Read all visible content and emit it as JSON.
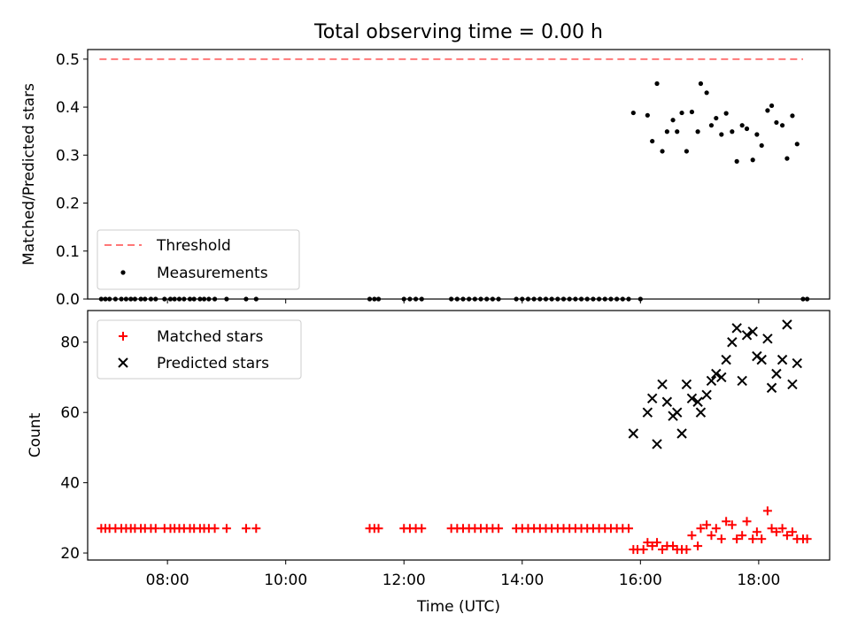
{
  "figure_title": "Total observing time = 0.00 h",
  "chart_data": [
    {
      "type": "scatter",
      "ylabel": "Matched/Predicted stars",
      "ylim": [
        0,
        0.52
      ],
      "yticks": [
        0.0,
        0.1,
        0.2,
        0.3,
        0.4,
        0.5
      ],
      "ytick_labels": [
        "0.0",
        "0.1",
        "0.2",
        "0.3",
        "0.4",
        "0.5"
      ],
      "xlim_hours": [
        6.65,
        19.2
      ],
      "legend": {
        "placement": "lower-left",
        "entries": [
          "Threshold",
          "Measurements"
        ]
      },
      "threshold": {
        "name": "Threshold",
        "value": 0.5,
        "x_range_hours": [
          6.85,
          18.75
        ],
        "color": "#ff7777",
        "style": "dashed"
      },
      "series": [
        {
          "name": "Measurements",
          "color": "#000000",
          "marker": "dot",
          "points": [
            [
              6.88,
              0
            ],
            [
              6.95,
              0
            ],
            [
              7.02,
              0
            ],
            [
              7.12,
              0
            ],
            [
              7.22,
              0
            ],
            [
              7.3,
              0
            ],
            [
              7.38,
              0
            ],
            [
              7.45,
              0
            ],
            [
              7.55,
              0
            ],
            [
              7.62,
              0
            ],
            [
              7.72,
              0
            ],
            [
              7.8,
              0
            ],
            [
              7.95,
              0
            ],
            [
              8.05,
              0
            ],
            [
              8.12,
              0
            ],
            [
              8.2,
              0
            ],
            [
              8.28,
              0
            ],
            [
              8.38,
              0
            ],
            [
              8.45,
              0
            ],
            [
              8.55,
              0
            ],
            [
              8.62,
              0
            ],
            [
              8.7,
              0
            ],
            [
              8.8,
              0
            ],
            [
              9.0,
              0
            ],
            [
              9.33,
              0
            ],
            [
              9.5,
              0
            ],
            [
              11.42,
              0
            ],
            [
              11.5,
              0
            ],
            [
              11.57,
              0
            ],
            [
              12.0,
              0
            ],
            [
              12.1,
              0
            ],
            [
              12.2,
              0
            ],
            [
              12.3,
              0
            ],
            [
              12.8,
              0
            ],
            [
              12.9,
              0
            ],
            [
              13.0,
              0
            ],
            [
              13.1,
              0
            ],
            [
              13.2,
              0
            ],
            [
              13.3,
              0
            ],
            [
              13.4,
              0
            ],
            [
              13.5,
              0
            ],
            [
              13.6,
              0
            ],
            [
              13.9,
              0
            ],
            [
              14.0,
              0
            ],
            [
              14.1,
              0
            ],
            [
              14.2,
              0
            ],
            [
              14.3,
              0
            ],
            [
              14.4,
              0
            ],
            [
              14.5,
              0
            ],
            [
              14.6,
              0
            ],
            [
              14.7,
              0
            ],
            [
              14.8,
              0
            ],
            [
              14.9,
              0
            ],
            [
              15.0,
              0
            ],
            [
              15.1,
              0
            ],
            [
              15.2,
              0
            ],
            [
              15.3,
              0
            ],
            [
              15.4,
              0
            ],
            [
              15.5,
              0
            ],
            [
              15.6,
              0
            ],
            [
              15.7,
              0
            ],
            [
              15.8,
              0
            ],
            [
              16.0,
              0
            ],
            [
              15.88,
              0.388
            ],
            [
              16.12,
              0.383
            ],
            [
              16.2,
              0.329
            ],
            [
              16.28,
              0.449
            ],
            [
              16.37,
              0.308
            ],
            [
              16.45,
              0.349
            ],
            [
              16.55,
              0.373
            ],
            [
              16.62,
              0.349
            ],
            [
              16.7,
              0.388
            ],
            [
              16.78,
              0.308
            ],
            [
              16.87,
              0.39
            ],
            [
              16.97,
              0.349
            ],
            [
              17.02,
              0.449
            ],
            [
              17.12,
              0.43
            ],
            [
              17.2,
              0.362
            ],
            [
              17.28,
              0.377
            ],
            [
              17.37,
              0.343
            ],
            [
              17.45,
              0.387
            ],
            [
              17.55,
              0.349
            ],
            [
              17.63,
              0.287
            ],
            [
              17.72,
              0.362
            ],
            [
              17.8,
              0.355
            ],
            [
              17.9,
              0.29
            ],
            [
              17.97,
              0.343
            ],
            [
              18.05,
              0.32
            ],
            [
              18.15,
              0.393
            ],
            [
              18.22,
              0.403
            ],
            [
              18.3,
              0.368
            ],
            [
              18.4,
              0.362
            ],
            [
              18.48,
              0.293
            ],
            [
              18.57,
              0.382
            ],
            [
              18.65,
              0.323
            ],
            [
              18.75,
              0
            ],
            [
              18.82,
              0
            ]
          ]
        }
      ]
    },
    {
      "type": "scatter",
      "xlabel": "Time (UTC)",
      "ylabel": "Count",
      "ylim": [
        18,
        89
      ],
      "yticks": [
        20,
        40,
        60,
        80
      ],
      "ytick_labels": [
        "20",
        "40",
        "60",
        "80"
      ],
      "xlim_hours": [
        6.65,
        19.2
      ],
      "xticks_hours": [
        8,
        10,
        12,
        14,
        16,
        18
      ],
      "xtick_labels": [
        "08:00",
        "10:00",
        "12:00",
        "14:00",
        "16:00",
        "18:00"
      ],
      "legend": {
        "placement": "upper-left",
        "entries": [
          "Matched stars",
          "Predicted stars"
        ]
      },
      "series": [
        {
          "name": "Matched stars",
          "color": "#ff0000",
          "marker": "plus",
          "points": [
            [
              6.88,
              27
            ],
            [
              6.95,
              27
            ],
            [
              7.02,
              27
            ],
            [
              7.12,
              27
            ],
            [
              7.22,
              27
            ],
            [
              7.3,
              27
            ],
            [
              7.38,
              27
            ],
            [
              7.45,
              27
            ],
            [
              7.55,
              27
            ],
            [
              7.62,
              27
            ],
            [
              7.72,
              27
            ],
            [
              7.8,
              27
            ],
            [
              7.95,
              27
            ],
            [
              8.05,
              27
            ],
            [
              8.12,
              27
            ],
            [
              8.2,
              27
            ],
            [
              8.28,
              27
            ],
            [
              8.38,
              27
            ],
            [
              8.45,
              27
            ],
            [
              8.55,
              27
            ],
            [
              8.62,
              27
            ],
            [
              8.7,
              27
            ],
            [
              8.8,
              27
            ],
            [
              9.0,
              27
            ],
            [
              9.33,
              27
            ],
            [
              9.5,
              27
            ],
            [
              11.42,
              27
            ],
            [
              11.5,
              27
            ],
            [
              11.57,
              27
            ],
            [
              12.0,
              27
            ],
            [
              12.1,
              27
            ],
            [
              12.2,
              27
            ],
            [
              12.3,
              27
            ],
            [
              12.8,
              27
            ],
            [
              12.9,
              27
            ],
            [
              13.0,
              27
            ],
            [
              13.1,
              27
            ],
            [
              13.2,
              27
            ],
            [
              13.3,
              27
            ],
            [
              13.4,
              27
            ],
            [
              13.5,
              27
            ],
            [
              13.6,
              27
            ],
            [
              13.9,
              27
            ],
            [
              14.0,
              27
            ],
            [
              14.1,
              27
            ],
            [
              14.2,
              27
            ],
            [
              14.3,
              27
            ],
            [
              14.4,
              27
            ],
            [
              14.5,
              27
            ],
            [
              14.6,
              27
            ],
            [
              14.7,
              27
            ],
            [
              14.8,
              27
            ],
            [
              14.9,
              27
            ],
            [
              15.0,
              27
            ],
            [
              15.1,
              27
            ],
            [
              15.2,
              27
            ],
            [
              15.3,
              27
            ],
            [
              15.4,
              27
            ],
            [
              15.5,
              27
            ],
            [
              15.6,
              27
            ],
            [
              15.7,
              27
            ],
            [
              15.8,
              27
            ],
            [
              15.88,
              21
            ],
            [
              15.95,
              21
            ],
            [
              16.05,
              21
            ],
            [
              16.12,
              23
            ],
            [
              16.2,
              22
            ],
            [
              16.28,
              23
            ],
            [
              16.37,
              21
            ],
            [
              16.45,
              22
            ],
            [
              16.55,
              22
            ],
            [
              16.62,
              21
            ],
            [
              16.7,
              21
            ],
            [
              16.78,
              21
            ],
            [
              16.87,
              25
            ],
            [
              16.97,
              22
            ],
            [
              17.02,
              27
            ],
            [
              17.12,
              28
            ],
            [
              17.2,
              25
            ],
            [
              17.28,
              27
            ],
            [
              17.37,
              24
            ],
            [
              17.45,
              29
            ],
            [
              17.55,
              28
            ],
            [
              17.63,
              24
            ],
            [
              17.72,
              25
            ],
            [
              17.8,
              29
            ],
            [
              17.9,
              24
            ],
            [
              17.97,
              26
            ],
            [
              18.05,
              24
            ],
            [
              18.15,
              32
            ],
            [
              18.22,
              27
            ],
            [
              18.3,
              26
            ],
            [
              18.4,
              27
            ],
            [
              18.48,
              25
            ],
            [
              18.57,
              26
            ],
            [
              18.65,
              24
            ],
            [
              18.75,
              24
            ],
            [
              18.82,
              24
            ]
          ]
        },
        {
          "name": "Predicted stars",
          "color": "#000000",
          "marker": "x",
          "points": [
            [
              15.88,
              54
            ],
            [
              16.12,
              60
            ],
            [
              16.2,
              64
            ],
            [
              16.28,
              51
            ],
            [
              16.37,
              68
            ],
            [
              16.45,
              63
            ],
            [
              16.55,
              59
            ],
            [
              16.62,
              60
            ],
            [
              16.7,
              54
            ],
            [
              16.78,
              68
            ],
            [
              16.87,
              64
            ],
            [
              16.97,
              63
            ],
            [
              17.02,
              60
            ],
            [
              17.12,
              65
            ],
            [
              17.2,
              69
            ],
            [
              17.28,
              71
            ],
            [
              17.37,
              70
            ],
            [
              17.45,
              75
            ],
            [
              17.55,
              80
            ],
            [
              17.63,
              84
            ],
            [
              17.72,
              69
            ],
            [
              17.8,
              82
            ],
            [
              17.9,
              83
            ],
            [
              17.97,
              76
            ],
            [
              18.05,
              75
            ],
            [
              18.15,
              81
            ],
            [
              18.22,
              67
            ],
            [
              18.3,
              71
            ],
            [
              18.4,
              75
            ],
            [
              18.48,
              85
            ],
            [
              18.57,
              68
            ],
            [
              18.65,
              74
            ]
          ]
        }
      ]
    }
  ]
}
